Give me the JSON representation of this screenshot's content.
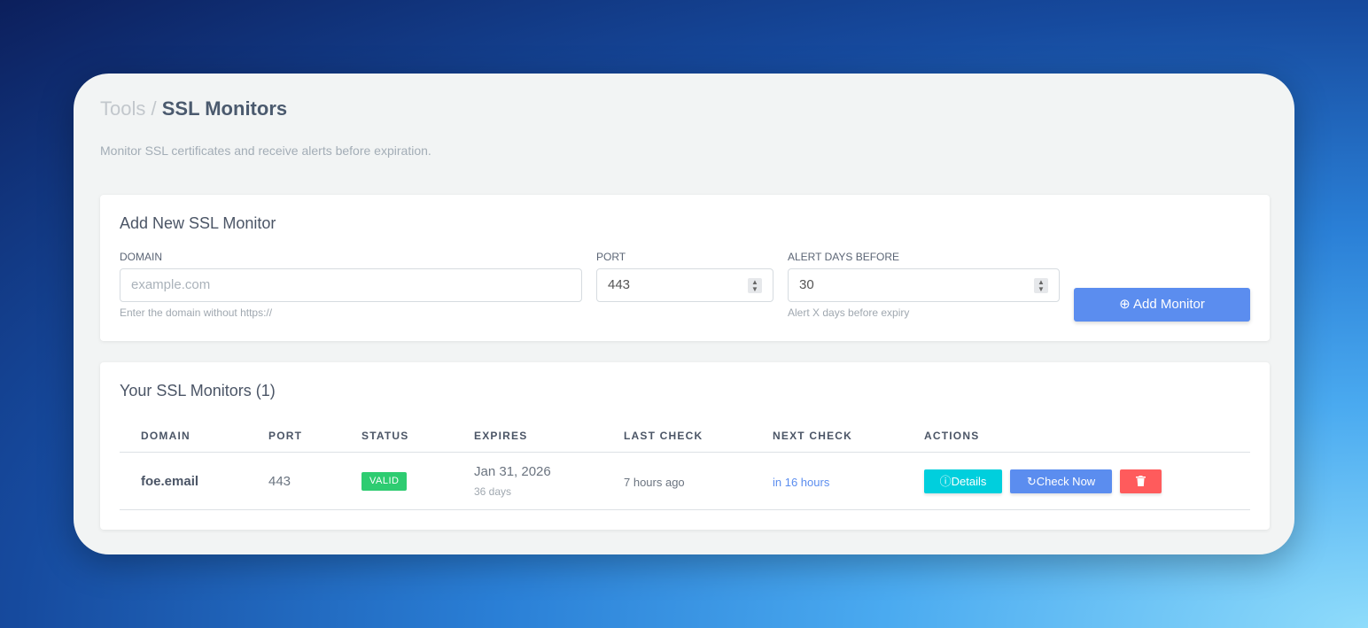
{
  "breadcrumb": {
    "parent": "Tools",
    "separator": "/",
    "current": "SSL Monitors"
  },
  "subtitle": "Monitor SSL certificates and receive alerts before expiration.",
  "add_form": {
    "title": "Add New SSL Monitor",
    "domain": {
      "label": "DOMAIN",
      "placeholder": "example.com",
      "help": "Enter the domain without https://"
    },
    "port": {
      "label": "PORT",
      "value": "443"
    },
    "alert_days": {
      "label": "ALERT DAYS BEFORE",
      "value": "30",
      "help": "Alert X days before expiry"
    },
    "submit_label": "Add Monitor"
  },
  "monitors": {
    "title": "Your SSL Monitors (1)",
    "columns": [
      "DOMAIN",
      "PORT",
      "STATUS",
      "EXPIRES",
      "LAST CHECK",
      "NEXT CHECK",
      "ACTIONS"
    ],
    "rows": [
      {
        "domain": "foe.email",
        "port": "443",
        "status": "VALID",
        "expires": "Jan 31, 2026",
        "expires_in": "36 days",
        "last_check": "7 hours ago",
        "next_check": "in 16 hours",
        "details": "Details",
        "check_now": "Check Now"
      }
    ]
  },
  "colors": {
    "primary": "#5b8def",
    "valid": "#2ecc71",
    "details": "#00cfdd",
    "delete": "#ff5b5c"
  }
}
